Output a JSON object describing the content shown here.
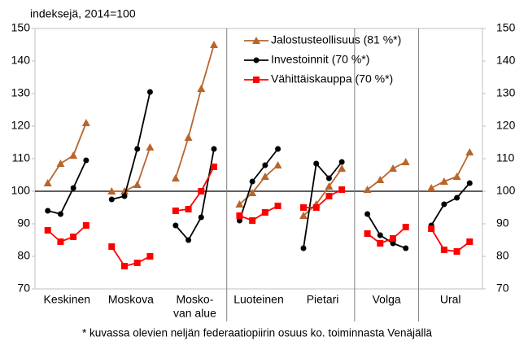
{
  "chart_data": {
    "type": "line",
    "subtitle": "indeksejä, 2014=100",
    "footnote": "* kuvassa olevien neljän federaatiopiirin osuus ko. toiminnasta Venäjällä",
    "categories": [
      "Keskinen",
      "Moskova",
      [
        "Mosko-",
        "van alue"
      ],
      "Luoteinen",
      "Pietari",
      "Volga",
      "Ural"
    ],
    "series": [
      {
        "name": "Jalostusteollisuus (81 %*)",
        "color": "#b8652b",
        "marker": "triangle",
        "values": [
          [
            102.5,
            108.5,
            111,
            121
          ],
          [
            100,
            100,
            102,
            113.5
          ],
          [
            104,
            116.5,
            131.5,
            145
          ],
          [
            96,
            99.5,
            104.5,
            108
          ],
          [
            92.5,
            96,
            101.5,
            107
          ],
          [
            100.5,
            103.5,
            107,
            109
          ],
          [
            101,
            103,
            104.5,
            112
          ]
        ]
      },
      {
        "name": "Investoinnit (70 %*)",
        "color": "#000000",
        "marker": "circle",
        "values": [
          [
            94,
            93,
            101,
            109.5
          ],
          [
            97.5,
            98.5,
            113,
            130.5
          ],
          [
            89.5,
            85,
            92,
            113
          ],
          [
            91,
            103,
            108,
            113
          ],
          [
            82.5,
            108.5,
            104,
            109
          ],
          [
            93,
            86.5,
            84,
            82.5
          ],
          [
            89.5,
            96,
            98,
            102.5
          ]
        ]
      },
      {
        "name": "Vähittäiskauppa (70 %*)",
        "color": "#ff0000",
        "marker": "square",
        "values": [
          [
            88,
            84.5,
            86,
            89.5
          ],
          [
            83,
            77,
            78,
            80
          ],
          [
            94,
            94.5,
            100,
            107.5
          ],
          [
            92.5,
            91,
            93.5,
            95.5
          ],
          [
            95,
            95,
            98.5,
            100.5
          ],
          [
            87,
            84,
            85.5,
            89
          ],
          [
            88.5,
            82,
            81.5,
            84.5
          ]
        ]
      }
    ],
    "ylim": [
      70,
      150
    ],
    "yticks": [
      70,
      80,
      90,
      100,
      110,
      120,
      130,
      140,
      150
    ],
    "y2lim": [
      70,
      150
    ],
    "y2ticks": [
      70,
      80,
      90,
      100,
      110,
      120,
      130,
      140,
      150
    ],
    "reference_line": 100
  }
}
